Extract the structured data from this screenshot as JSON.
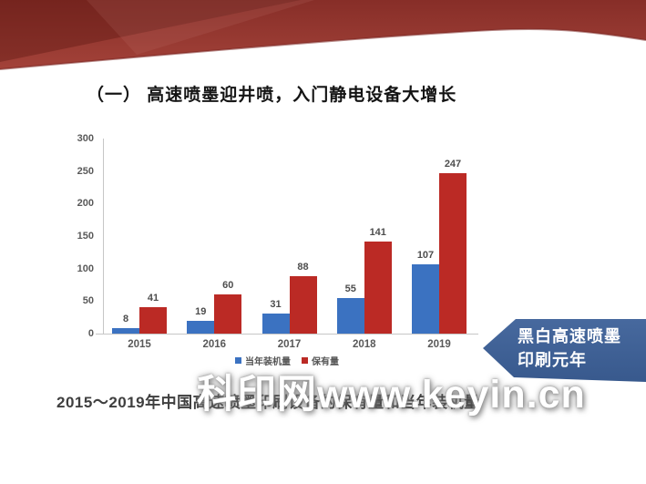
{
  "slide": {
    "title": "（一） 高速喷墨迎井喷，入门静电设备大增长",
    "caption": "2015～2019年中国高速喷墨印刷设备的保有量和当年装机量",
    "watermark": "科印网www.keyin.cn",
    "callout": {
      "line1": "黑白高速喷墨",
      "line2": "印刷元年"
    }
  },
  "chart_data": {
    "type": "bar",
    "title": "",
    "xlabel": "",
    "ylabel": "",
    "categories": [
      "2015",
      "2016",
      "2017",
      "2018",
      "2019"
    ],
    "series": [
      {
        "id": "annual-installs",
        "name": "当年装机量",
        "color": "#3B72C1",
        "values": [
          8,
          19,
          31,
          55,
          107
        ]
      },
      {
        "id": "holdings",
        "name": "保有量",
        "color": "#BB2A25",
        "values": [
          41,
          60,
          88,
          141,
          247
        ]
      }
    ],
    "ylim": [
      0,
      300
    ],
    "yticks": [
      0,
      50,
      100,
      150,
      200,
      250,
      300
    ],
    "grid": false,
    "legend_position": "bottom"
  },
  "colors": {
    "ribbon_dark": "#5A1511",
    "ribbon_main_top": "#872E28",
    "ribbon_main_bottom": "#A34239",
    "ribbon_edge": "#7A2520",
    "callout_top": "#47699E",
    "callout_bottom": "#38598D",
    "axis": "#c6c6c6",
    "tick_text": "#595959"
  }
}
